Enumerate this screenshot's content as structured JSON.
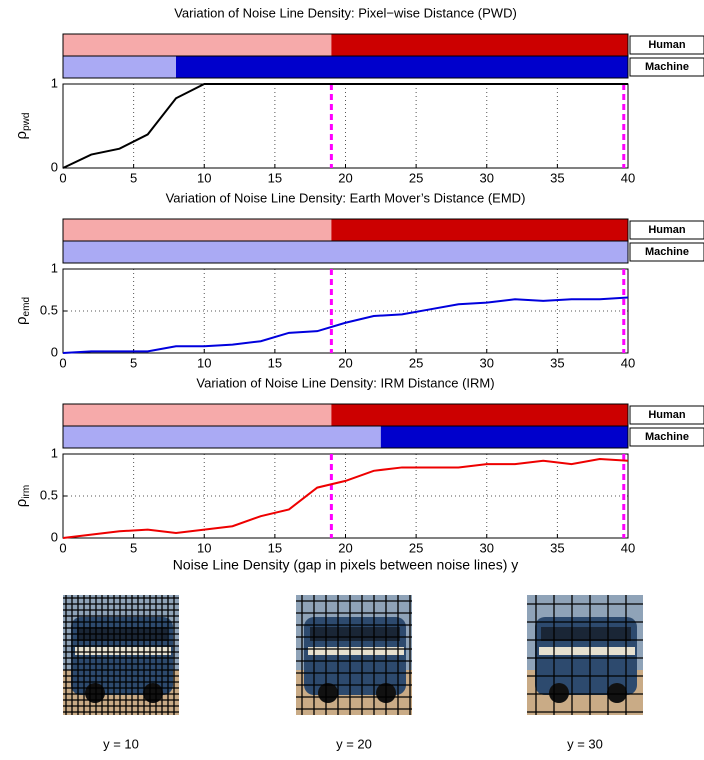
{
  "chart_data": [
    {
      "type": "line",
      "title": "Variation of Noise Line Density: Pixel−wise Distance (PWD)",
      "ylabel": "ρ",
      "ylabel_sub": "pwd",
      "x": [
        0,
        2,
        4,
        6,
        8,
        10,
        12,
        14,
        16,
        18,
        20,
        22,
        24,
        26,
        28,
        30,
        32,
        34,
        36,
        38,
        40
      ],
      "series": [
        {
          "color": "#000000",
          "values": [
            0,
            0.16,
            0.23,
            0.4,
            0.83,
            1,
            1,
            1,
            1,
            1,
            1,
            1,
            1,
            1,
            1,
            1,
            1,
            1,
            1,
            1,
            1
          ]
        }
      ],
      "xlim": [
        0,
        40
      ],
      "xticks": [
        0,
        5,
        10,
        15,
        20,
        25,
        30,
        35,
        40
      ],
      "ylim": [
        0,
        1
      ],
      "yticks": [
        0,
        1
      ],
      "grid": true,
      "thresholds": [
        19,
        39.7
      ],
      "bands": [
        {
          "name": "Human",
          "threshold": 19,
          "light": "#f6aaaa",
          "dark": "#cc0000",
          "text": "#dd0000"
        },
        {
          "name": "Machine",
          "threshold": 8,
          "light": "#aaaaf4",
          "dark": "#0000cc",
          "text": "#0000dd"
        }
      ]
    },
    {
      "type": "line",
      "title": "Variation of Noise Line Density: Earth Mover’s Distance (EMD)",
      "ylabel": "ρ",
      "ylabel_sub": "emd",
      "x": [
        0,
        2,
        4,
        6,
        8,
        10,
        12,
        14,
        16,
        18,
        20,
        22,
        24,
        26,
        28,
        30,
        32,
        34,
        36,
        38,
        40
      ],
      "series": [
        {
          "color": "#0000dd",
          "values": [
            0,
            0.02,
            0.02,
            0.02,
            0.08,
            0.08,
            0.1,
            0.14,
            0.24,
            0.26,
            0.36,
            0.44,
            0.46,
            0.52,
            0.58,
            0.6,
            0.64,
            0.62,
            0.64,
            0.64,
            0.66
          ]
        }
      ],
      "xlim": [
        0,
        40
      ],
      "xticks": [
        0,
        5,
        10,
        15,
        20,
        25,
        30,
        35,
        40
      ],
      "ylim": [
        0,
        1
      ],
      "yticks": [
        0,
        0.5,
        1
      ],
      "grid": true,
      "thresholds": [
        19,
        39.7
      ],
      "bands": [
        {
          "name": "Human",
          "threshold": 19,
          "light": "#f6aaaa",
          "dark": "#cc0000",
          "text": "#dd0000"
        },
        {
          "name": "Machine",
          "threshold": 40,
          "light": "#aaaaf4",
          "dark": "#0000cc",
          "text": "#0000dd"
        }
      ]
    },
    {
      "type": "line",
      "title": "Variation of Noise Line Density: IRM Distance (IRM)",
      "ylabel": "ρ",
      "ylabel_sub": "irm",
      "xlabel": "Noise Line Density (gap in pixels between noise lines) y",
      "x": [
        0,
        2,
        4,
        6,
        8,
        10,
        12,
        14,
        16,
        18,
        20,
        22,
        24,
        26,
        28,
        30,
        32,
        34,
        36,
        38,
        40
      ],
      "series": [
        {
          "color": "#ee0000",
          "values": [
            0,
            0.04,
            0.08,
            0.1,
            0.06,
            0.1,
            0.14,
            0.26,
            0.34,
            0.6,
            0.68,
            0.8,
            0.84,
            0.84,
            0.84,
            0.88,
            0.88,
            0.92,
            0.88,
            0.94,
            0.92
          ]
        }
      ],
      "xlim": [
        0,
        40
      ],
      "xticks": [
        0,
        5,
        10,
        15,
        20,
        25,
        30,
        35,
        40
      ],
      "ylim": [
        0,
        1
      ],
      "yticks": [
        0,
        0.5,
        1
      ],
      "grid": true,
      "thresholds": [
        19,
        39.7
      ],
      "bands": [
        {
          "name": "Human",
          "threshold": 19,
          "light": "#f6aaaa",
          "dark": "#cc0000",
          "text": "#dd0000"
        },
        {
          "name": "Machine",
          "threshold": 22.5,
          "light": "#aaaaf4",
          "dark": "#0000cc",
          "text": "#0000dd"
        }
      ]
    }
  ],
  "images": [
    {
      "caption": "y = 10",
      "gap": 10
    },
    {
      "caption": "y = 20",
      "gap": 20
    },
    {
      "caption": "y = 30",
      "gap": 30
    }
  ]
}
